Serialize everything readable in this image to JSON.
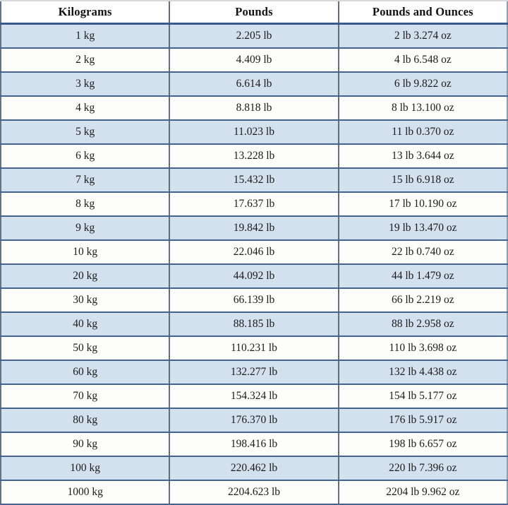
{
  "table": {
    "headers": [
      "Kilograms",
      "Pounds",
      "Pounds and Ounces"
    ],
    "rows": [
      [
        "1 kg",
        "2.205 lb",
        "2 lb 3.274 oz"
      ],
      [
        "2 kg",
        "4.409 lb",
        "4 lb 6.548 oz"
      ],
      [
        "3 kg",
        "6.614 lb",
        "6 lb 9.822 oz"
      ],
      [
        "4 kg",
        "8.818 lb",
        "8 lb 13.100 oz"
      ],
      [
        "5 kg",
        "11.023 lb",
        "11 lb 0.370 oz"
      ],
      [
        "6 kg",
        "13.228 lb",
        "13 lb 3.644 oz"
      ],
      [
        "7 kg",
        "15.432 lb",
        "15 lb 6.918 oz"
      ],
      [
        "8 kg",
        "17.637 lb",
        "17 lb 10.190 oz"
      ],
      [
        "9 kg",
        "19.842 lb",
        "19 lb 13.470 oz"
      ],
      [
        "10 kg",
        "22.046 lb",
        "22 lb 0.740 oz"
      ],
      [
        "20 kg",
        "44.092 lb",
        "44 lb 1.479 oz"
      ],
      [
        "30 kg",
        "66.139 lb",
        "66 lb 2.219 oz"
      ],
      [
        "40 kg",
        "88.185 lb",
        "88 lb 2.958 oz"
      ],
      [
        "50 kg",
        "110.231 lb",
        "110 lb 3.698 oz"
      ],
      [
        "60 kg",
        "132.277 lb",
        "132 lb 4.438 oz"
      ],
      [
        "70 kg",
        "154.324 lb",
        "154 lb 5.177 oz"
      ],
      [
        "80 kg",
        "176.370 lb",
        "176 lb 5.917 oz"
      ],
      [
        "90 kg",
        "198.416 lb",
        "198 lb 6.657 oz"
      ],
      [
        "100 kg",
        "220.462 lb",
        "220 lb 7.396 oz"
      ],
      [
        "1000 kg",
        "2204.623 lb",
        "2204 lb 9.962 oz"
      ]
    ]
  },
  "colors": {
    "row_alt_blue": "#d3e0ed",
    "row_white": "#fdfdfc",
    "border_horizontal": "#44638f",
    "border_vertical": "#5c6f83",
    "header_separator": "#3a5a8c",
    "top_edge": "#d9d9d9",
    "bottom_strip_gray": "#b9b9b9",
    "text": "#1b1b1b"
  },
  "chart_data": {
    "type": "table",
    "title": "",
    "columns": [
      "Kilograms",
      "Pounds",
      "Pounds and Ounces"
    ],
    "kilograms": [
      1,
      2,
      3,
      4,
      5,
      6,
      7,
      8,
      9,
      10,
      20,
      30,
      40,
      50,
      60,
      70,
      80,
      90,
      100,
      1000
    ],
    "pounds": [
      2.205,
      4.409,
      6.614,
      8.818,
      11.023,
      13.228,
      15.432,
      17.637,
      19.842,
      22.046,
      44.092,
      66.139,
      88.185,
      110.231,
      132.277,
      154.324,
      176.37,
      198.416,
      220.462,
      2204.623
    ],
    "pounds_and_ounces": [
      "2 lb 3.274 oz",
      "4 lb 6.548 oz",
      "6 lb 9.822 oz",
      "8 lb 13.100 oz",
      "11 lb 0.370 oz",
      "13 lb 3.644 oz",
      "15 lb 6.918 oz",
      "17 lb 10.190 oz",
      "19 lb 13.470 oz",
      "22 lb 0.740 oz",
      "44 lb 1.479 oz",
      "66 lb 2.219 oz",
      "88 lb 2.958 oz",
      "110 lb 3.698 oz",
      "132 lb 4.438 oz",
      "154 lb 5.177 oz",
      "176 lb 5.917 oz",
      "198 lb 6.657 oz",
      "220 lb 7.396 oz",
      "2204 lb 9.962 oz"
    ],
    "layout": {
      "striped_rows": true,
      "stripe_start": "blue",
      "grid": true,
      "columns_equal_width": true
    }
  }
}
